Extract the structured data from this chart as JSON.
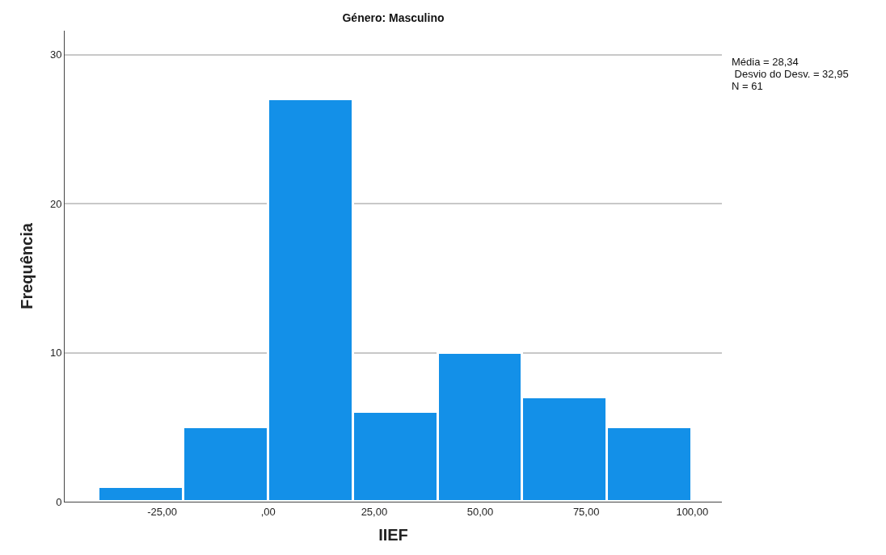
{
  "chart_data": {
    "type": "histogram",
    "title": "Género: Masculino",
    "xlabel": "IIEF",
    "ylabel": "Frequência",
    "bins": [
      -40,
      -20,
      0,
      20,
      40,
      60,
      80,
      100
    ],
    "values": [
      1,
      5,
      27,
      6,
      10,
      7,
      5
    ],
    "color": "#1390e8",
    "xlim": [
      -48,
      107
    ],
    "ylim": [
      0,
      31.6
    ],
    "xticks": [
      {
        "value": -25,
        "label": "-25,00"
      },
      {
        "value": 0,
        "label": ",00"
      },
      {
        "value": 25,
        "label": "25,00"
      },
      {
        "value": 50,
        "label": "50,00"
      },
      {
        "value": 75,
        "label": "75,00"
      },
      {
        "value": 100,
        "label": "100,00"
      }
    ],
    "yticks": [
      0,
      10,
      20,
      30
    ],
    "grid": "y",
    "annotations": [
      "Média = 28,34",
      " Desvio do Desv. = 32,95",
      "N = 61"
    ]
  }
}
